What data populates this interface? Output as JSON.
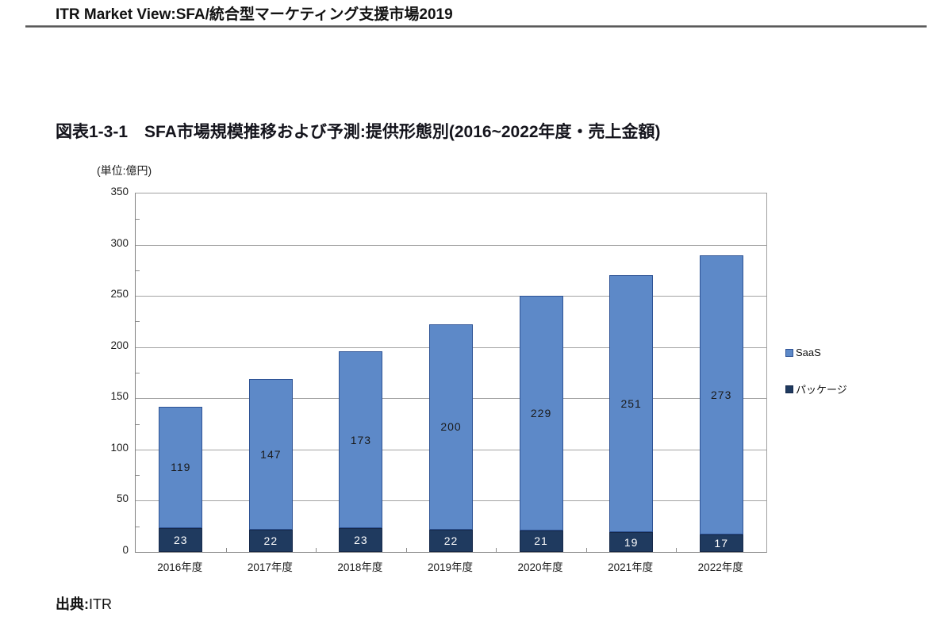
{
  "header": {
    "title": "ITR Market View:SFA/統合型マーケティング支援市場2019"
  },
  "figure": {
    "caption": "図表1-3-1　SFA市場規模推移および予測:提供形態別(2016~2022年度・売上金額)",
    "unit_label": "(単位:億円)"
  },
  "source": {
    "label": "出典:",
    "value": "ITR"
  },
  "chart_data": {
    "type": "bar",
    "stacked": true,
    "title": "SFA市場規模推移および予測:提供形態別(2016~2022年度・売上金額)",
    "xlabel": "",
    "ylabel": "(単位:億円)",
    "categories": [
      "2016年度",
      "2017年度",
      "2018年度",
      "2019年度",
      "2020年度",
      "2021年度",
      "2022年度"
    ],
    "series": [
      {
        "name": "SaaS",
        "values": [
          119,
          147,
          173,
          200,
          229,
          251,
          273
        ],
        "color": "#5d89c8",
        "border_color": "#2e5395",
        "label_color": "#1a1a1a"
      },
      {
        "name": "パッケージ",
        "values": [
          23,
          22,
          23,
          22,
          21,
          19,
          17
        ],
        "color": "#1f3a5f",
        "border_color": "#16294a",
        "label_color": "#ffffff"
      }
    ],
    "totals": [
      142,
      169,
      196,
      222,
      250,
      270,
      290
    ],
    "ylim": [
      0,
      350
    ],
    "ytick_interval": 50,
    "yticks": [
      0,
      50,
      100,
      150,
      200,
      250,
      300,
      350
    ],
    "grid": "horizontal",
    "legend_position": "right"
  }
}
